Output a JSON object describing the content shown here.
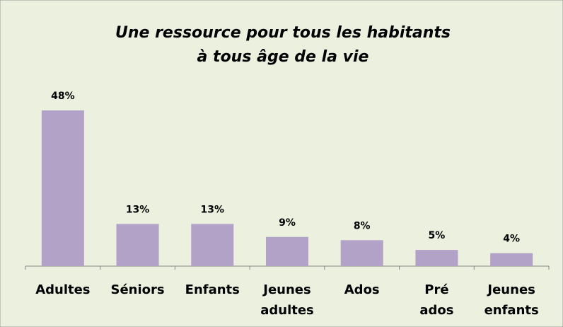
{
  "chart_data": {
    "type": "bar",
    "title": [
      "Une ressource pour tous les habitants",
      "à tous âge de la vie"
    ],
    "categories": [
      "Adultes",
      "Séniors",
      "Enfants",
      "Jeunes adultes",
      "Ados",
      "Pré ados",
      "Jeunes enfants"
    ],
    "values": [
      48,
      13,
      13,
      9,
      8,
      5,
      4
    ],
    "value_labels": [
      "48%",
      "13%",
      "13%",
      "9%",
      "8%",
      "5%",
      "4%"
    ],
    "color": "#b3a2c7"
  }
}
